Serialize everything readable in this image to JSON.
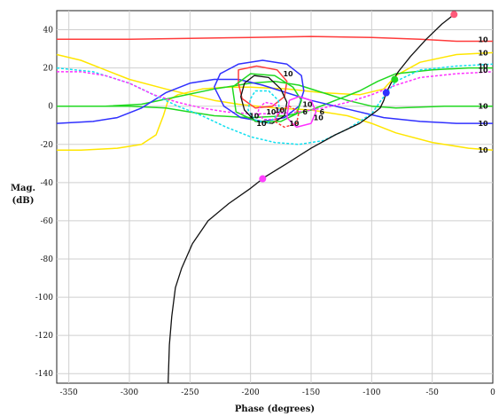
{
  "chart_data": {
    "type": "line",
    "title": "",
    "xlabel": "Phase (degrees)",
    "ylabel_lines": [
      "Mag.",
      "(dB)"
    ],
    "xlim": [
      -360,
      0
    ],
    "ylim": [
      -145,
      50
    ],
    "xticks": [
      -350,
      -300,
      -250,
      -200,
      -150,
      -100,
      -50,
      0
    ],
    "yticks": [
      40,
      20,
      0,
      -20,
      -40,
      -60,
      -80,
      -100,
      -120,
      -140
    ],
    "grid": true,
    "colors": {
      "red": "#ff3b3b",
      "yellow": "#ffe600",
      "green": "#20d820",
      "blue": "#3030ff",
      "cyan": "#10e0f0",
      "magenta": "#ff30ff",
      "black": "#111111"
    },
    "series": [
      {
        "color": "red",
        "style": "solid",
        "points": [
          [
            -360,
            35
          ],
          [
            -300,
            35
          ],
          [
            -250,
            35.5
          ],
          [
            -200,
            36
          ],
          [
            -150,
            36.5
          ],
          [
            -100,
            36
          ],
          [
            -60,
            35
          ],
          [
            -30,
            34
          ],
          [
            0,
            34
          ]
        ]
      },
      {
        "color": "yellow",
        "style": "solid",
        "points": [
          [
            -360,
            27
          ],
          [
            -340,
            24
          ],
          [
            -320,
            19
          ],
          [
            -300,
            14
          ],
          [
            -270,
            9
          ],
          [
            -250,
            6
          ],
          [
            -230,
            3
          ],
          [
            -210,
            1
          ],
          [
            -180,
            -1
          ],
          [
            -150,
            -2
          ],
          [
            -120,
            -5
          ],
          [
            -100,
            -9
          ],
          [
            -80,
            -14
          ],
          [
            -50,
            -19
          ],
          [
            -20,
            -22
          ],
          [
            0,
            -23
          ]
        ]
      },
      {
        "color": "yellow",
        "style": "solid",
        "points": [
          [
            -360,
            -23
          ],
          [
            -340,
            -23
          ],
          [
            -310,
            -22
          ],
          [
            -290,
            -20
          ],
          [
            -278,
            -15
          ],
          [
            -272,
            -5
          ],
          [
            -268,
            3
          ],
          [
            -260,
            6
          ],
          [
            -240,
            9
          ],
          [
            -220,
            10
          ],
          [
            -200,
            10
          ],
          [
            -170,
            9
          ],
          [
            -140,
            7
          ],
          [
            -110,
            6
          ],
          [
            -90,
            9
          ],
          [
            -80,
            16
          ],
          [
            -60,
            23
          ],
          [
            -30,
            27
          ],
          [
            0,
            28
          ]
        ]
      },
      {
        "color": "green",
        "style": "solid",
        "points": [
          [
            -360,
            0
          ],
          [
            -320,
            0
          ],
          [
            -290,
            1
          ],
          [
            -260,
            5
          ],
          [
            -230,
            9
          ],
          [
            -200,
            12
          ],
          [
            -180,
            13
          ],
          [
            -160,
            11
          ],
          [
            -140,
            7
          ],
          [
            -120,
            3
          ],
          [
            -100,
            0
          ],
          [
            -80,
            -1
          ],
          [
            -40,
            0
          ],
          [
            0,
            0
          ]
        ]
      },
      {
        "color": "green",
        "style": "solid",
        "points": [
          [
            -360,
            0
          ],
          [
            -330,
            0
          ],
          [
            -300,
            0
          ],
          [
            -270,
            -1
          ],
          [
            -250,
            -3
          ],
          [
            -230,
            -5
          ],
          [
            -200,
            -6
          ],
          [
            -170,
            -5
          ],
          [
            -150,
            -2
          ],
          [
            -130,
            3
          ],
          [
            -110,
            8
          ],
          [
            -95,
            13
          ],
          [
            -80,
            17
          ],
          [
            -50,
            19
          ],
          [
            -20,
            20
          ],
          [
            0,
            20
          ]
        ]
      },
      {
        "color": "blue",
        "style": "solid",
        "points": [
          [
            -360,
            -9
          ],
          [
            -330,
            -8
          ],
          [
            -310,
            -6
          ],
          [
            -290,
            -1
          ],
          [
            -270,
            7
          ],
          [
            -250,
            12
          ],
          [
            -230,
            14
          ],
          [
            -210,
            14
          ],
          [
            -190,
            11
          ],
          [
            -170,
            7
          ],
          [
            -150,
            3
          ],
          [
            -130,
            0
          ],
          [
            -110,
            -3
          ],
          [
            -90,
            -6
          ],
          [
            -60,
            -8
          ],
          [
            -30,
            -9
          ],
          [
            0,
            -9
          ]
        ]
      },
      {
        "color": "cyan",
        "style": "dashed",
        "points": [
          [
            -360,
            20
          ],
          [
            -330,
            18
          ],
          [
            -300,
            12
          ],
          [
            -280,
            6
          ],
          [
            -260,
            0
          ],
          [
            -240,
            -5
          ],
          [
            -220,
            -11
          ],
          [
            -200,
            -16
          ],
          [
            -180,
            -19
          ],
          [
            -160,
            -20
          ],
          [
            -140,
            -18
          ],
          [
            -120,
            -12
          ],
          [
            -100,
            -4
          ],
          [
            -90,
            5
          ],
          [
            -80,
            13
          ],
          [
            -60,
            19
          ],
          [
            -30,
            21
          ],
          [
            0,
            22
          ]
        ]
      },
      {
        "color": "magenta",
        "style": "dashed",
        "points": [
          [
            -360,
            18
          ],
          [
            -340,
            18
          ],
          [
            -320,
            16
          ],
          [
            -300,
            12
          ],
          [
            -280,
            6
          ],
          [
            -260,
            2
          ],
          [
            -240,
            -1
          ],
          [
            -220,
            -3
          ],
          [
            -200,
            -4
          ],
          [
            -180,
            -4
          ],
          [
            -160,
            -3
          ],
          [
            -140,
            -1
          ],
          [
            -120,
            2
          ],
          [
            -100,
            6
          ],
          [
            -80,
            11
          ],
          [
            -60,
            15
          ],
          [
            -30,
            17
          ],
          [
            0,
            18
          ]
        ]
      },
      {
        "color": "blue",
        "style": "solid",
        "points": [
          [
            -230,
            10
          ],
          [
            -225,
            17
          ],
          [
            -210,
            22
          ],
          [
            -190,
            24
          ],
          [
            -170,
            22
          ],
          [
            -158,
            16
          ],
          [
            -156,
            8
          ],
          [
            -160,
            0
          ],
          [
            -172,
            -6
          ],
          [
            -190,
            -8
          ],
          [
            -208,
            -6
          ],
          [
            -222,
            0
          ],
          [
            -230,
            10
          ]
        ]
      },
      {
        "color": "red",
        "style": "solid",
        "points": [
          [
            -210,
            12
          ],
          [
            -210,
            19
          ],
          [
            -195,
            21
          ],
          [
            -178,
            19
          ],
          [
            -170,
            13
          ],
          [
            -172,
            5
          ],
          [
            -182,
            0
          ],
          [
            -196,
            -1
          ],
          [
            -207,
            4
          ],
          [
            -210,
            12
          ]
        ]
      },
      {
        "color": "black",
        "style": "solid",
        "points": [
          [
            -205,
            12
          ],
          [
            -197,
            16
          ],
          [
            -185,
            15
          ],
          [
            -175,
            9
          ],
          [
            -170,
            2
          ],
          [
            -172,
            -5
          ],
          [
            -182,
            -9
          ],
          [
            -196,
            -8
          ],
          [
            -205,
            -2
          ],
          [
            -208,
            5
          ],
          [
            -205,
            12
          ]
        ]
      },
      {
        "color": "green",
        "style": "solid",
        "points": [
          [
            -215,
            10
          ],
          [
            -200,
            17
          ],
          [
            -180,
            16
          ],
          [
            -165,
            10
          ],
          [
            -158,
            3
          ],
          [
            -162,
            -4
          ],
          [
            -175,
            -8
          ],
          [
            -195,
            -8
          ],
          [
            -212,
            -3
          ],
          [
            -215,
            10
          ]
        ]
      },
      {
        "color": "cyan",
        "style": "dashed",
        "points": [
          [
            -200,
            4
          ],
          [
            -196,
            8
          ],
          [
            -185,
            8
          ],
          [
            -177,
            3
          ],
          [
            -176,
            -4
          ],
          [
            -186,
            -9
          ],
          [
            -197,
            -7
          ],
          [
            -202,
            -2
          ],
          [
            -200,
            4
          ]
        ]
      },
      {
        "color": "magenta",
        "style": "dashed",
        "points": [
          [
            -193,
            -1
          ],
          [
            -188,
            2
          ],
          [
            -180,
            1
          ],
          [
            -176,
            -3
          ],
          [
            -180,
            -7
          ],
          [
            -189,
            -7
          ],
          [
            -194,
            -4
          ],
          [
            -193,
            -1
          ]
        ]
      },
      {
        "color": "magenta",
        "style": "solid",
        "points": [
          [
            -168,
            3
          ],
          [
            -160,
            5
          ],
          [
            -150,
            3
          ],
          [
            -146,
            -3
          ],
          [
            -150,
            -9
          ],
          [
            -162,
            -11
          ],
          [
            -170,
            -6
          ],
          [
            -168,
            3
          ]
        ]
      },
      {
        "color": "red",
        "style": "dashed",
        "points": [
          [
            -175,
            -2
          ],
          [
            -168,
            0
          ],
          [
            -160,
            -3
          ],
          [
            -162,
            -9
          ],
          [
            -172,
            -11
          ],
          [
            -180,
            -8
          ],
          [
            -175,
            -2
          ]
        ]
      },
      {
        "color": "black",
        "style": "solid",
        "points": [
          [
            -268,
            -145
          ],
          [
            -267,
            -125
          ],
          [
            -265,
            -110
          ],
          [
            -262,
            -95
          ],
          [
            -257,
            -85
          ],
          [
            -248,
            -72
          ],
          [
            -235,
            -60
          ],
          [
            -218,
            -51
          ],
          [
            -200,
            -43
          ],
          [
            -188,
            -37
          ],
          [
            -170,
            -30
          ],
          [
            -150,
            -22
          ],
          [
            -130,
            -15
          ],
          [
            -110,
            -9
          ],
          [
            -97,
            -3
          ],
          [
            -93,
            -1
          ],
          [
            -90,
            3
          ],
          [
            -88,
            7
          ],
          [
            -84,
            12
          ],
          [
            -78,
            18
          ],
          [
            -68,
            26
          ],
          [
            -55,
            35
          ],
          [
            -42,
            43
          ],
          [
            -32,
            48
          ]
        ]
      }
    ],
    "markers": [
      {
        "x": -32,
        "y": 48,
        "color": "#ff5a7a"
      },
      {
        "x": -190,
        "y": -38,
        "color": "#ff40ff"
      },
      {
        "x": -88,
        "y": 7,
        "color": "#3030ff"
      },
      {
        "x": -81,
        "y": 14,
        "color": "#20d820"
      }
    ],
    "contour_labels": [
      {
        "x": -8,
        "y": 35,
        "text": "10"
      },
      {
        "x": -8,
        "y": 28,
        "text": "10"
      },
      {
        "x": -8,
        "y": 21,
        "text": "10"
      },
      {
        "x": -8,
        "y": 19,
        "text": "10"
      },
      {
        "x": -8,
        "y": 0,
        "text": "10"
      },
      {
        "x": -8,
        "y": -9,
        "text": "10"
      },
      {
        "x": -8,
        "y": -23,
        "text": "10"
      },
      {
        "x": -169,
        "y": 17,
        "text": "10"
      },
      {
        "x": -153,
        "y": 1,
        "text": "10"
      },
      {
        "x": -176,
        "y": -2,
        "text": "10"
      },
      {
        "x": -155,
        "y": -3,
        "text": "6"
      },
      {
        "x": -183,
        "y": -3,
        "text": "10"
      },
      {
        "x": -197,
        "y": -5,
        "text": "10"
      },
      {
        "x": -141,
        "y": -3,
        "text": "6"
      },
      {
        "x": -144,
        "y": -6,
        "text": "10"
      },
      {
        "x": -164,
        "y": -9,
        "text": "10"
      },
      {
        "x": -191,
        "y": -9,
        "text": "10"
      }
    ]
  }
}
